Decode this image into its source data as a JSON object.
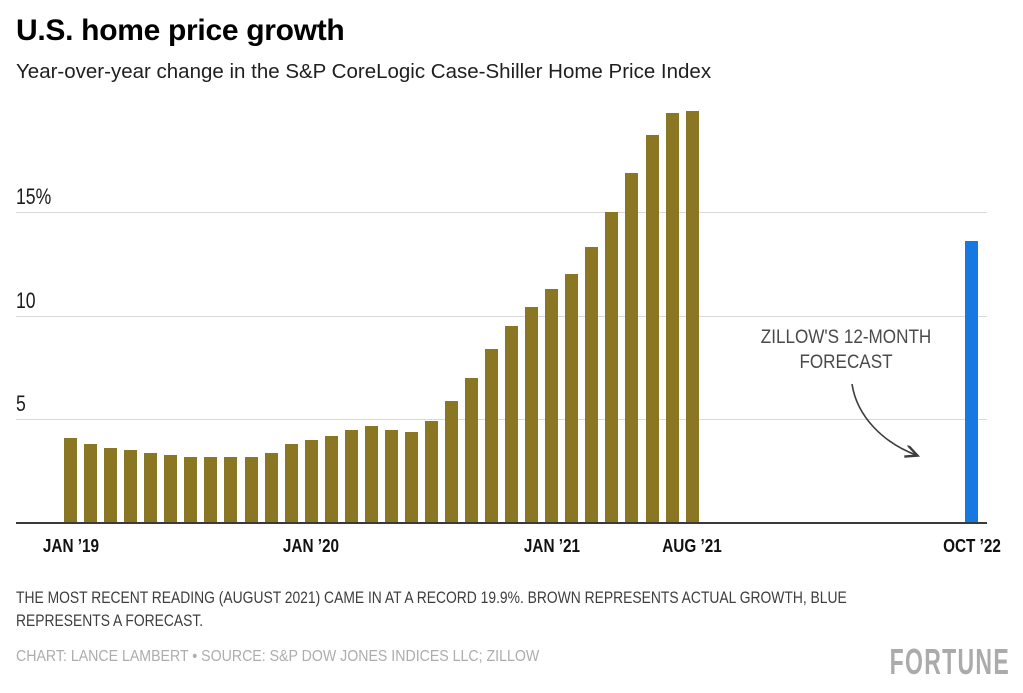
{
  "header": {
    "title": "U.S. home price growth",
    "subtitle": "Year-over-year change in the S&P CoreLogic Case-Shiller Home Price Index"
  },
  "chart_data": {
    "type": "bar",
    "title": "U.S. home price growth",
    "subtitle": "Year-over-year change in the S&P CoreLogic Case-Shiller Home Price Index",
    "ylim": [
      0,
      20.3
    ],
    "grid": true,
    "y_ticks": [
      {
        "value": 5,
        "label": "5"
      },
      {
        "value": 10,
        "label": "10"
      },
      {
        "value": 15,
        "label": "15%"
      }
    ],
    "series": [
      {
        "name": "Actual growth",
        "color": "#8a7623",
        "categories": [
          "Jan 2019",
          "Feb 2019",
          "Mar 2019",
          "Apr 2019",
          "May 2019",
          "Jun 2019",
          "Jul 2019",
          "Aug 2019",
          "Sep 2019",
          "Oct 2019",
          "Nov 2019",
          "Dec 2019",
          "Jan 2020",
          "Feb 2020",
          "Mar 2020",
          "Apr 2020",
          "May 2020",
          "Jun 2020",
          "Jul 2020",
          "Aug 2020",
          "Sep 2020",
          "Oct 2020",
          "Nov 2020",
          "Dec 2020",
          "Jan 2021",
          "Feb 2021",
          "Mar 2021",
          "Apr 2021",
          "May 2021",
          "Jun 2021",
          "Jul 2021",
          "Aug 2021"
        ],
        "values": [
          4.1,
          3.8,
          3.6,
          3.5,
          3.4,
          3.3,
          3.2,
          3.2,
          3.2,
          3.2,
          3.4,
          3.8,
          4.0,
          4.2,
          4.5,
          4.7,
          4.5,
          4.4,
          4.9,
          5.9,
          7.0,
          8.4,
          9.5,
          10.4,
          11.3,
          12.0,
          13.3,
          15.0,
          16.9,
          18.7,
          19.8,
          19.9
        ]
      },
      {
        "name": "Zillow's 12-month forecast",
        "color": "#1778e4",
        "categories": [
          "Oct 2022"
        ],
        "values": [
          13.6
        ]
      }
    ],
    "x_ticks": [
      {
        "label": "JAN ’19",
        "series": 0,
        "index": 0
      },
      {
        "label": "JAN ’20",
        "series": 0,
        "index": 12
      },
      {
        "label": "JAN ’21",
        "series": 0,
        "index": 24
      },
      {
        "label": "AUG ’21",
        "series": 0,
        "index": 31
      },
      {
        "label": "OCT ’22",
        "series": 1,
        "index": 0
      }
    ],
    "annotation": {
      "lines": [
        "ZILLOW'S 12-MONTH",
        "FORECAST"
      ]
    }
  },
  "footer": {
    "note_lines": [
      "THE MOST RECENT READING (AUGUST 2021) CAME IN AT A RECORD 19.9%. BROWN REPRESENTS ACTUAL GROWTH, BLUE",
      "REPRESENTS A FORECAST."
    ],
    "credit": "CHART: LANCE LAMBERT • SOURCE: S&P DOW JONES INDICES LLC; ZILLOW",
    "logo": "FORTUNE"
  }
}
